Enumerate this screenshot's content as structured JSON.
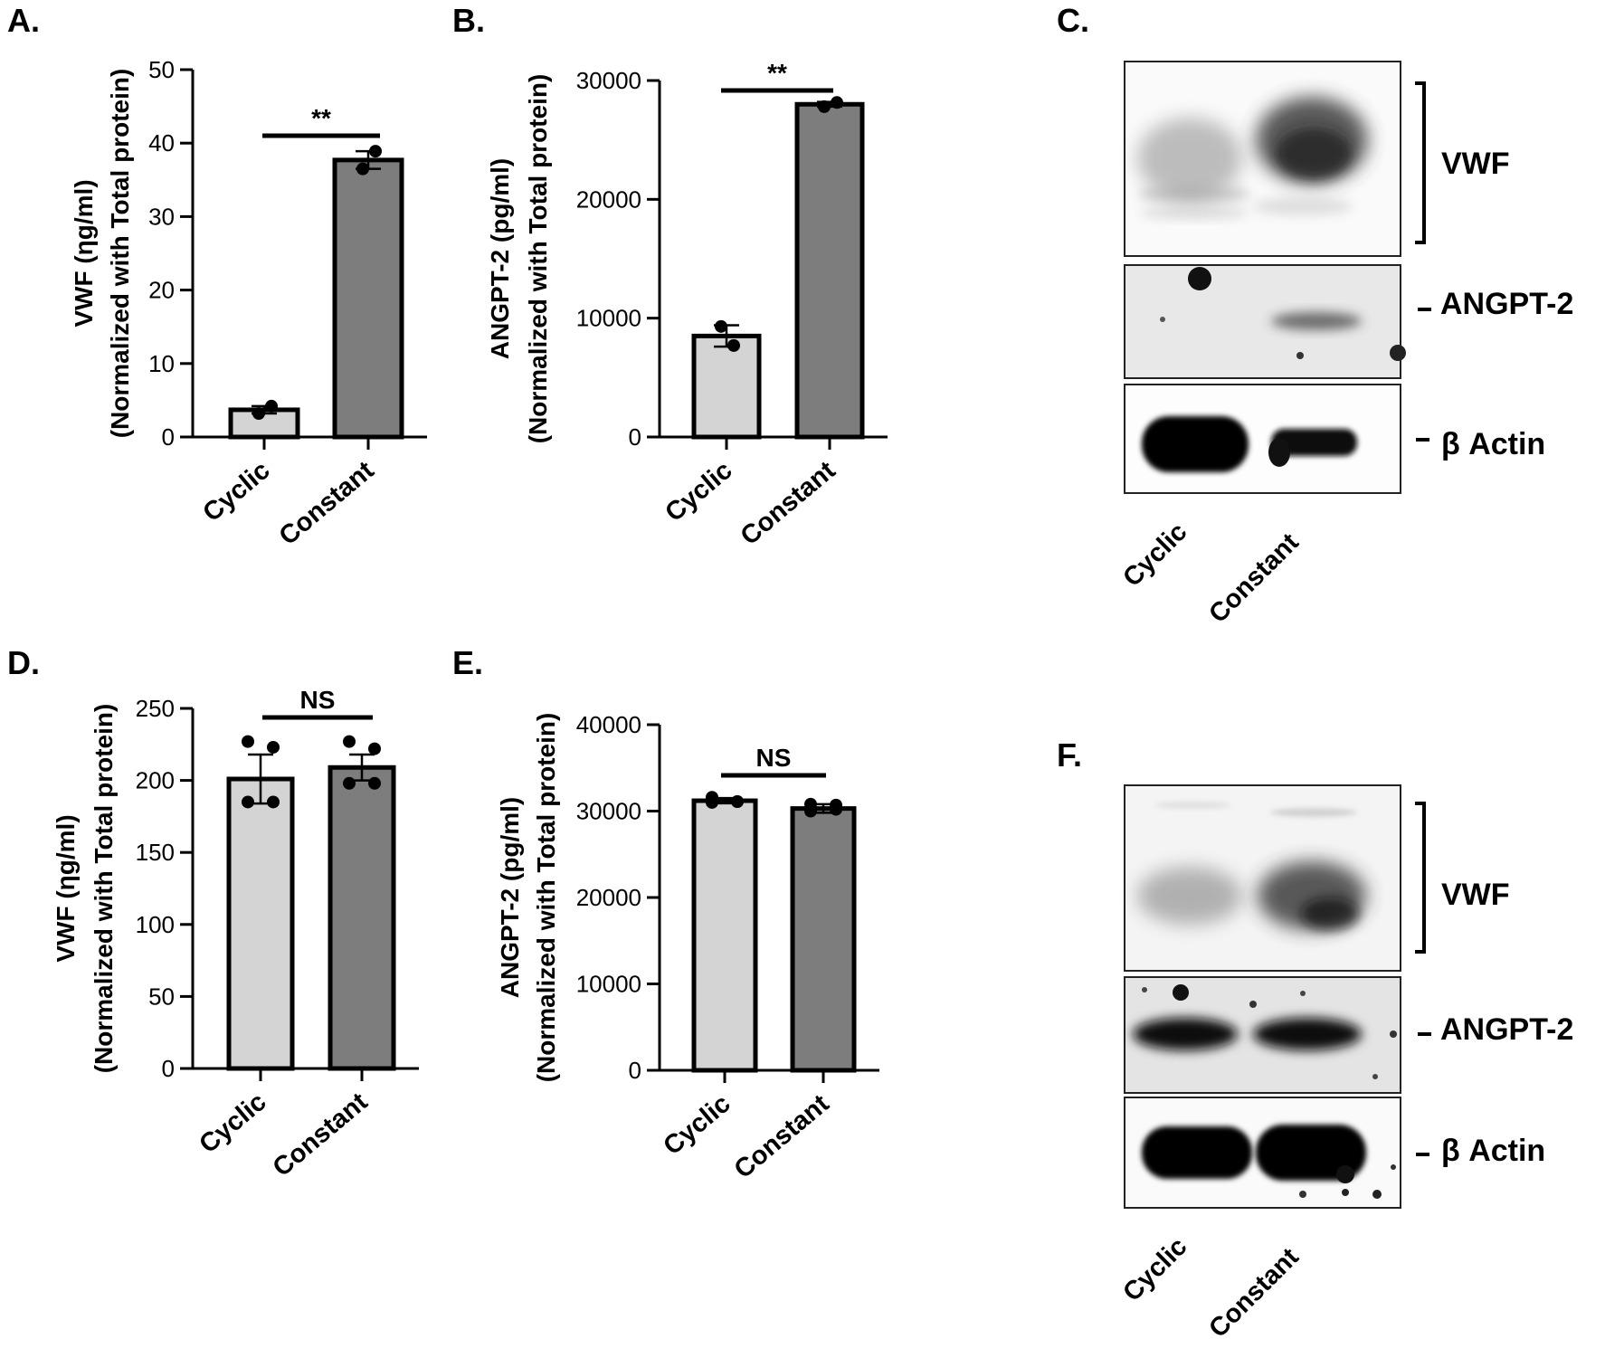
{
  "chart_data": [
    {
      "panel": "A.",
      "type": "bar",
      "categories": [
        "Cyclic",
        "Constant"
      ],
      "values": [
        3.7,
        37.7
      ],
      "errors": [
        0.5,
        1.2
      ],
      "points": [
        [
          3.2,
          4.2
        ],
        [
          36.5,
          38.9
        ]
      ],
      "ylabel_line1": "VWF (ηg/ml)",
      "ylabel_line2": "(Normalized with Total protein)",
      "yticks": [
        0,
        10,
        20,
        30,
        40,
        50
      ],
      "ylim": [
        0,
        50
      ],
      "significance": "**",
      "bar_colors": [
        "#d4d4d4",
        "#7d7d7d"
      ]
    },
    {
      "panel": "B.",
      "type": "bar",
      "categories": [
        "Cyclic",
        "Constant"
      ],
      "values": [
        8500,
        28000
      ],
      "errors": [
        900,
        200
      ],
      "points": [
        [
          9300,
          7700
        ],
        [
          27800,
          28150
        ]
      ],
      "ylabel_line1": "ANGPT-2 (pg/ml)",
      "ylabel_line2": "(Normalized with Total protein)",
      "yticks": [
        0,
        10000,
        20000,
        30000
      ],
      "ylim": [
        0,
        30000
      ],
      "significance": "**",
      "bar_colors": [
        "#d4d4d4",
        "#7d7d7d"
      ]
    },
    {
      "panel": "D.",
      "type": "bar",
      "categories": [
        "Cyclic",
        "Constant"
      ],
      "values": [
        201,
        209
      ],
      "errors": [
        17,
        9
      ],
      "points": [
        [
          227,
          223,
          185,
          185
        ],
        [
          227,
          222,
          198,
          198
        ]
      ],
      "ylabel_line1": "VWF (ηg/ml)",
      "ylabel_line2": "(Normalized with Total protein)",
      "yticks": [
        0,
        50,
        100,
        150,
        200,
        250
      ],
      "ylim": [
        0,
        250
      ],
      "significance": "NS",
      "bar_colors": [
        "#d4d4d4",
        "#7d7d7d"
      ]
    },
    {
      "panel": "E.",
      "type": "bar",
      "categories": [
        "Cyclic",
        "Constant"
      ],
      "values": [
        31200,
        30300
      ],
      "errors": [
        300,
        500
      ],
      "points": [
        [
          31600,
          31100,
          31000,
          31100
        ],
        [
          30000,
          30700,
          30800,
          30200
        ]
      ],
      "ylabel_line1": "ANGPT-2 (pg/ml)",
      "ylabel_line2": "(Normalized with Total protein)",
      "yticks": [
        0,
        10000,
        20000,
        30000,
        40000
      ],
      "ylim": [
        0,
        40000
      ],
      "significance": "NS",
      "bar_colors": [
        "#d4d4d4",
        "#7d7d7d"
      ]
    }
  ],
  "blots": [
    {
      "panel": "C.",
      "bands": [
        "VWF",
        "ANGPT-2",
        "β Actin"
      ],
      "lanes": [
        "Cyclic",
        "Constant"
      ]
    },
    {
      "panel": "F.",
      "bands": [
        "VWF",
        "ANGPT-2",
        "β Actin"
      ],
      "lanes": [
        "Cyclic",
        "Constant"
      ]
    }
  ]
}
